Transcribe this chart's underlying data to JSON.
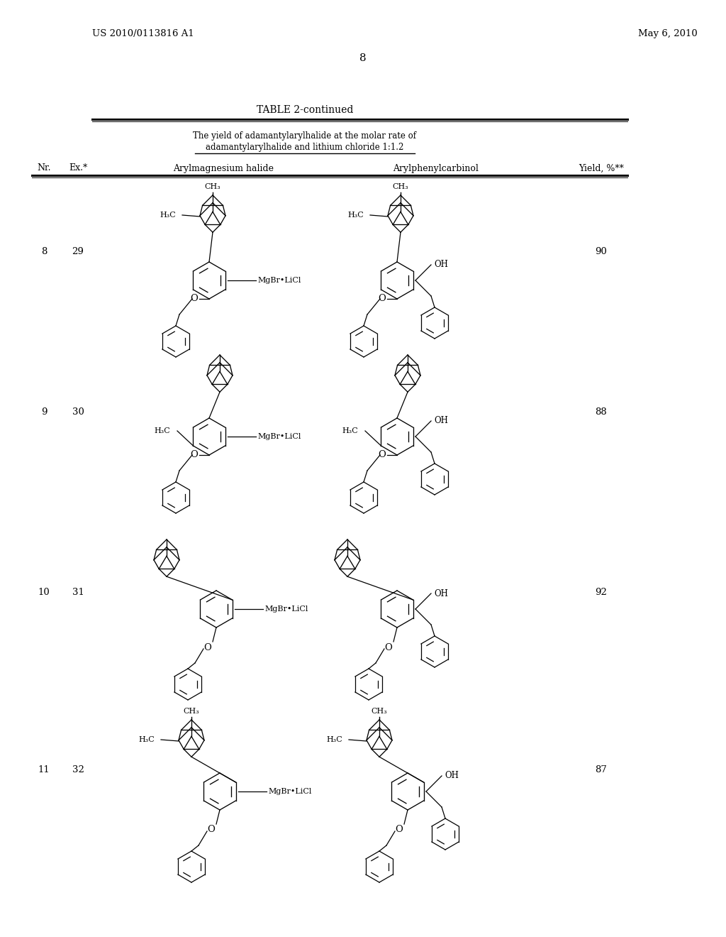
{
  "patent_number": "US 2010/0113816 A1",
  "patent_date": "May 6, 2010",
  "page_number": "8",
  "table_title": "TABLE 2-continued",
  "subtitle1": "The yield of adamantylarylhalide at the molar rate of",
  "subtitle2": "adamantylarylhalide and lithium chloride 1:1.2",
  "col_nr": "Nr.",
  "col_ex": "Ex.*",
  "col_aryl": "Arylmagnesium halide",
  "col_arylphenyl": "Arylphenylcarbinol",
  "col_yield": "Yield, %**",
  "rows": [
    {
      "nr": "8",
      "ex": "29",
      "yield": "90"
    },
    {
      "nr": "9",
      "ex": "30",
      "yield": "88"
    },
    {
      "nr": "10",
      "ex": "31",
      "yield": "92"
    },
    {
      "nr": "11",
      "ex": "32",
      "yield": "87"
    }
  ],
  "bg": "#f2f2f2"
}
